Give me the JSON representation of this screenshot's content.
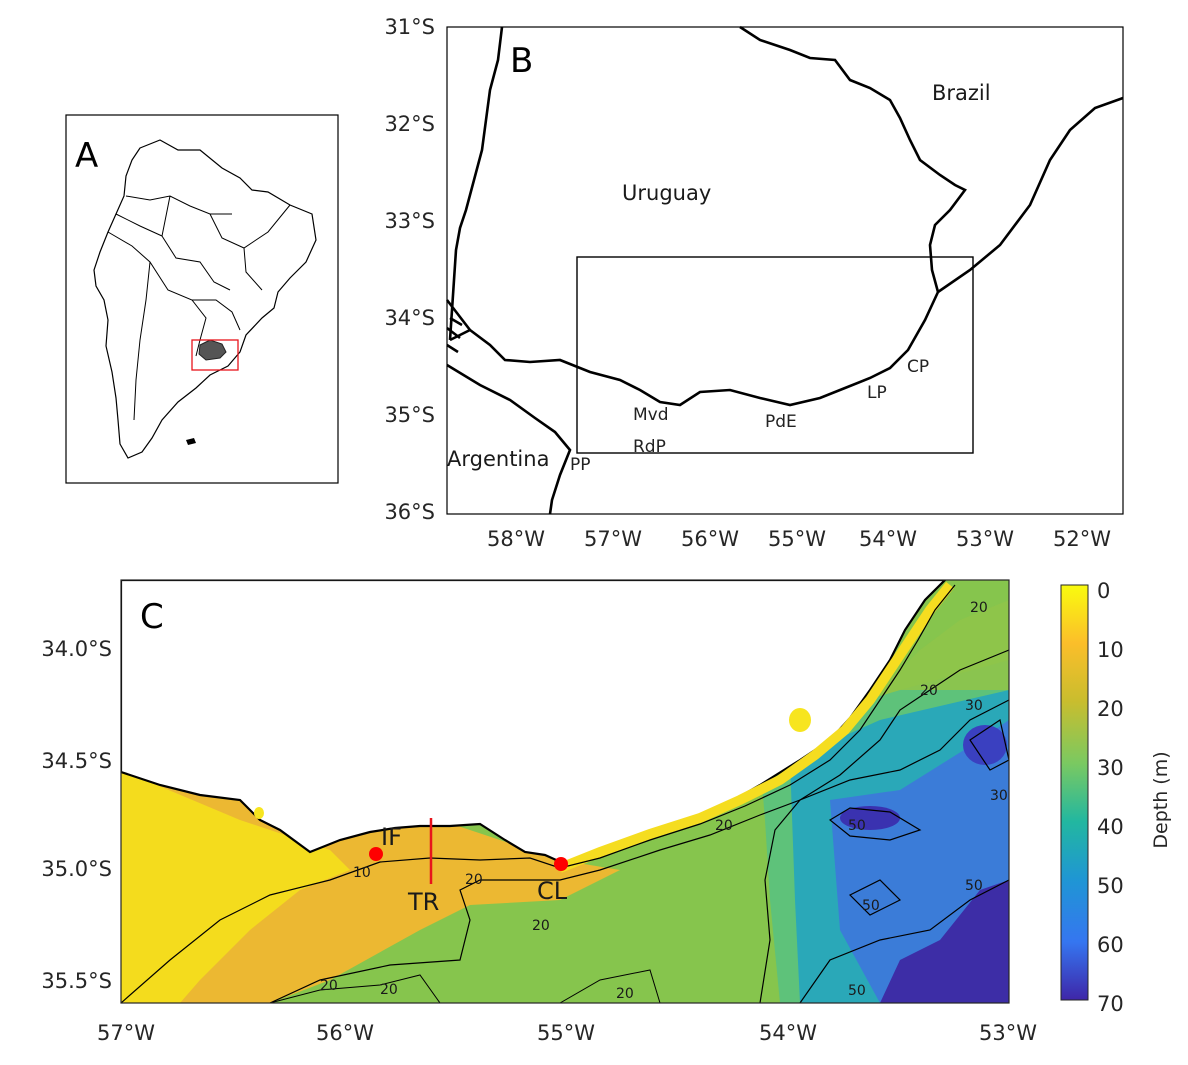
{
  "panelA": {
    "label": "A"
  },
  "panelB": {
    "label": "B",
    "lat_ticks": [
      "31°S",
      "32°S",
      "33°S",
      "34°S",
      "35°S",
      "36°S"
    ],
    "lon_ticks": [
      "58°W",
      "57°W",
      "56°W",
      "55°W",
      "54°W",
      "53°W",
      "52°W"
    ],
    "places": {
      "brazil": "Brazil",
      "uruguay": "Uruguay",
      "argentina": "Argentina",
      "pp": "PP",
      "mvd": "Mvd",
      "rdp": "RdP",
      "pde": "PdE",
      "lp": "LP",
      "cp": "CP"
    }
  },
  "panelC": {
    "label": "C",
    "lat_ticks": [
      "34.0°S",
      "34.5°S",
      "35.0°S",
      "35.5°S"
    ],
    "lon_ticks": [
      "57°W",
      "56°W",
      "55°W",
      "54°W",
      "53°W"
    ],
    "sites": {
      "if": "IF",
      "cl": "CL",
      "tr": "TR"
    },
    "contours": {
      "c10": "10",
      "c20": "20",
      "c30": "30",
      "c50": "50"
    }
  },
  "colorbar": {
    "label": "Depth (m)",
    "ticks": [
      "0",
      "10",
      "20",
      "30",
      "40",
      "50",
      "60",
      "70"
    ],
    "range": [
      0,
      70
    ],
    "colors": [
      "#f9fb0e",
      "#fbbe2a",
      "#d6c02e",
      "#7ac961",
      "#22b7a0",
      "#1f96d4",
      "#3576f0",
      "#3e26a8"
    ]
  },
  "colors": {
    "coast": "#000000",
    "box_red": "#e8141b",
    "site_red": "#ff0000",
    "land_c": "#ffffff"
  }
}
